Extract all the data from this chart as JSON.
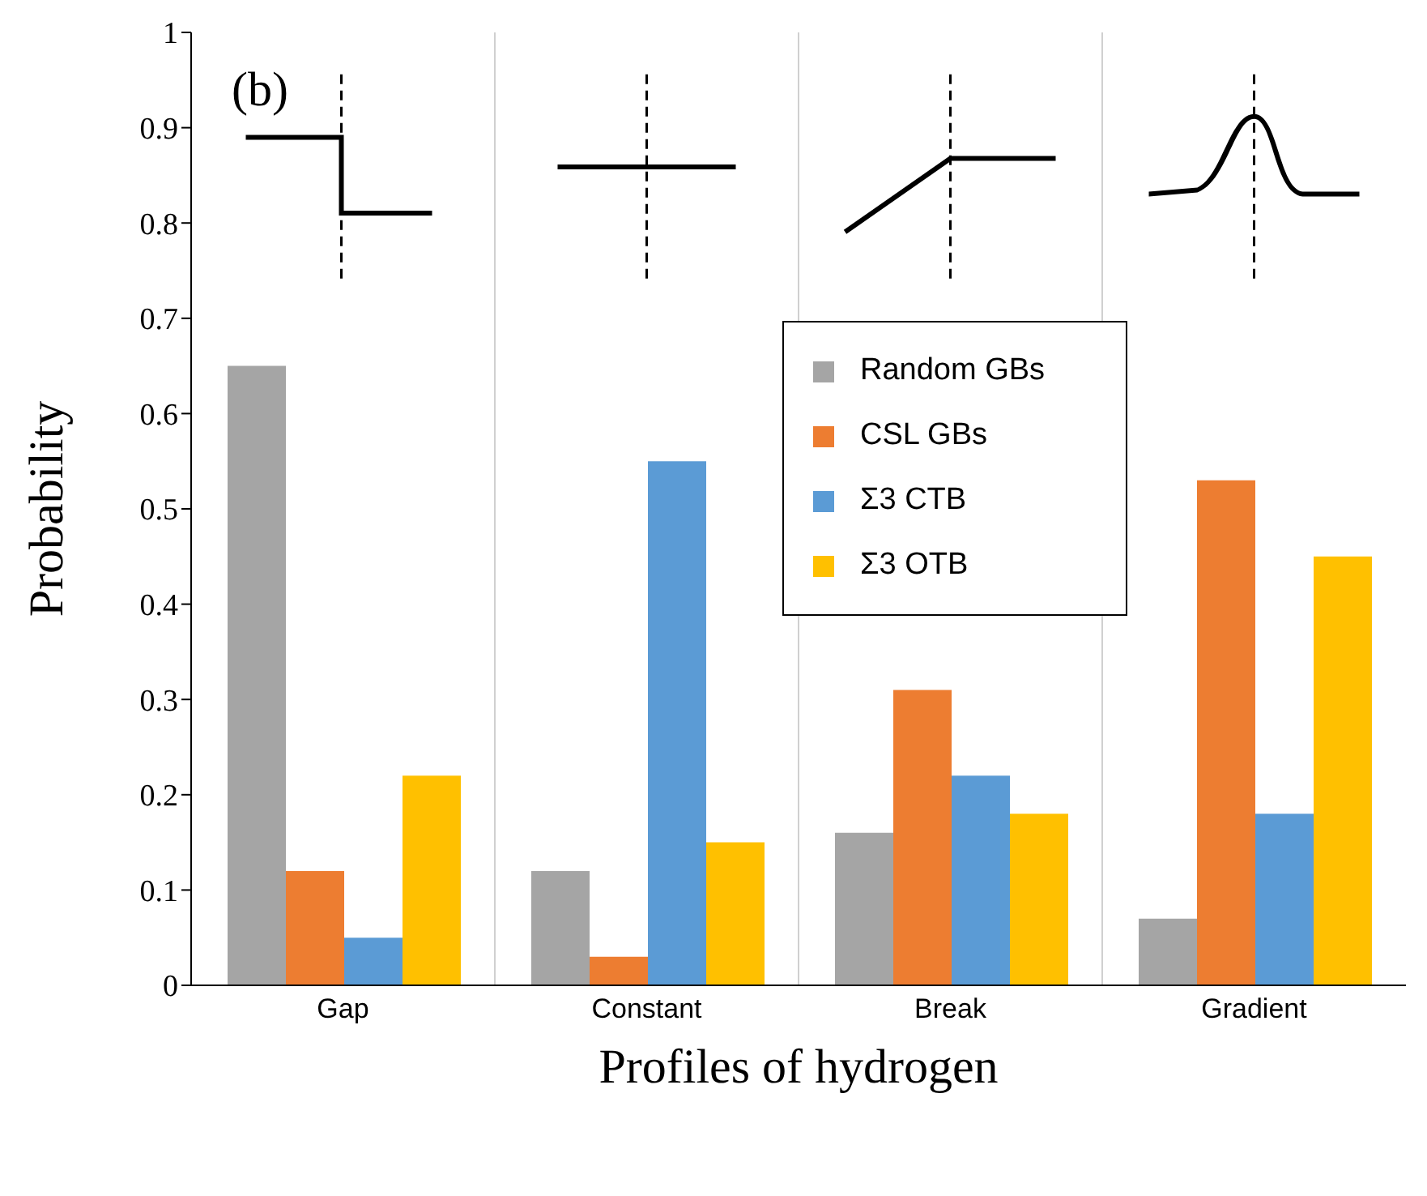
{
  "chart_data": {
    "type": "bar",
    "xlabel": "Profiles of hydrogen",
    "ylabel": "Probability",
    "categories": [
      "Gap",
      "Constant",
      "Break",
      "Gradient"
    ],
    "series": [
      {
        "name": "Random GBs",
        "color": "#a5a5a5",
        "values": [
          0.65,
          0.12,
          0.16,
          0.07
        ]
      },
      {
        "name": "CSL GBs",
        "color": "#ed7d31",
        "values": [
          0.12,
          0.03,
          0.31,
          0.53
        ]
      },
      {
        "name": "Σ3 CTB",
        "color": "#5b9bd5",
        "values": [
          0.05,
          0.55,
          0.22,
          0.18
        ]
      },
      {
        "name": "Σ3 OTB",
        "color": "#ffc000",
        "values": [
          0.22,
          0.15,
          0.18,
          0.45
        ]
      }
    ],
    "ylim": [
      0,
      1
    ],
    "yticks": [
      0,
      0.1,
      0.2,
      0.3,
      0.4,
      0.5,
      0.6,
      0.7,
      0.8,
      0.9,
      1
    ],
    "grid": "x",
    "legend": "center",
    "annotations": [
      "(b)"
    ]
  }
}
